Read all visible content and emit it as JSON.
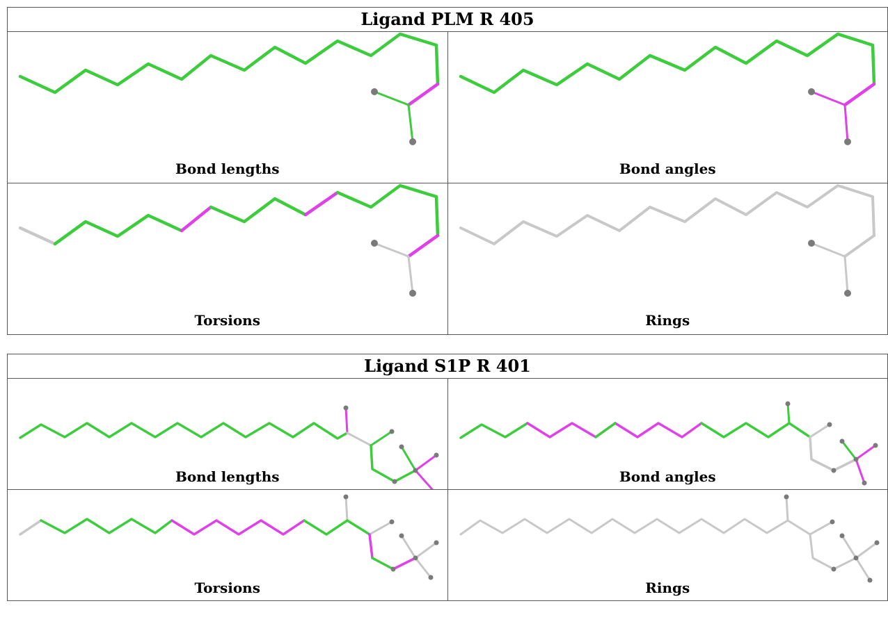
{
  "colors": {
    "ok": "#3ccc3c",
    "outlier": "#e040e8",
    "neutral": "#c8c8c8",
    "atom": "#7a7a7a"
  },
  "ligands": [
    {
      "title": "Ligand PLM R 405",
      "panels": [
        {
          "label": "Bond lengths"
        },
        {
          "label": "Bond angles"
        },
        {
          "label": "Torsions"
        },
        {
          "label": "Rings"
        }
      ]
    },
    {
      "title": "Ligand S1P R 401",
      "panels": [
        {
          "label": "Bond lengths"
        },
        {
          "label": "Bond angles"
        },
        {
          "label": "Torsions"
        },
        {
          "label": "Rings"
        }
      ]
    }
  ]
}
